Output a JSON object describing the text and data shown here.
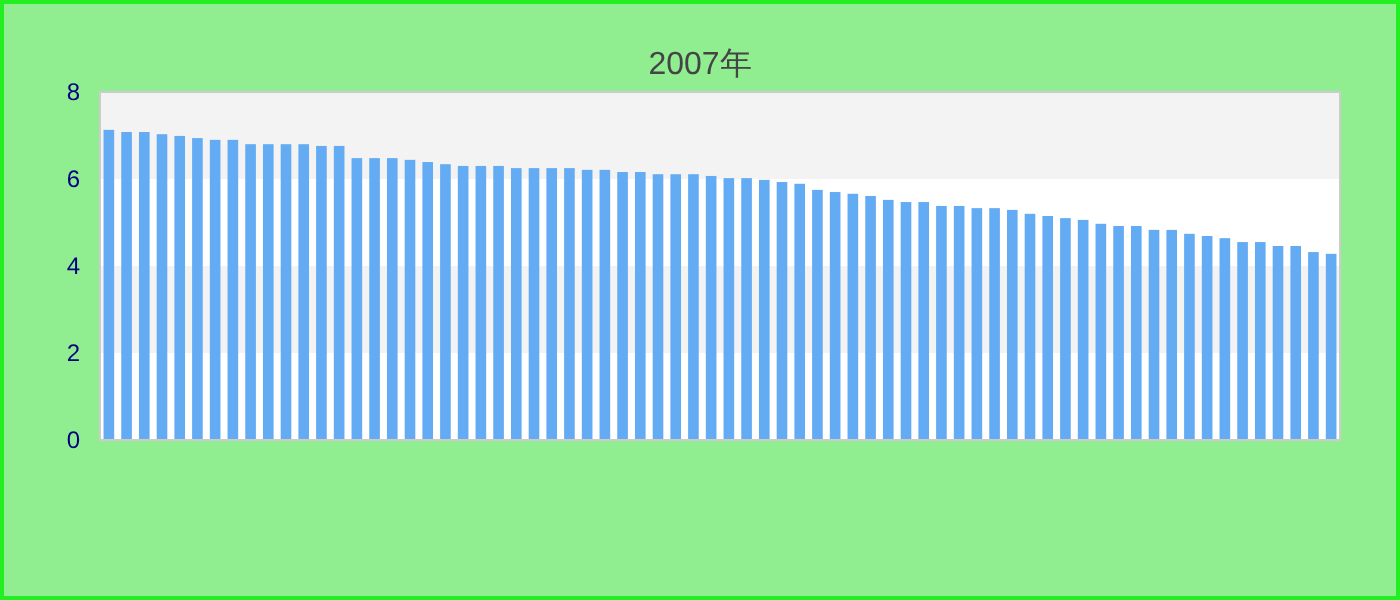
{
  "chart_data": {
    "type": "bar",
    "title": "2007年",
    "categories": [
      null,
      null,
      null,
      null,
      null,
      null,
      null,
      null,
      null,
      null,
      null,
      null,
      null,
      null,
      null,
      null,
      null,
      null,
      null,
      null,
      null,
      null,
      null,
      null,
      null,
      null,
      null,
      null,
      null,
      null,
      null,
      null,
      null,
      null,
      null,
      null,
      null,
      null,
      null,
      null,
      null,
      null,
      null,
      null,
      null,
      null,
      null,
      null,
      null,
      null,
      null,
      null,
      null,
      null,
      null,
      null,
      null,
      null,
      null,
      null,
      null,
      null,
      null,
      null,
      null,
      null,
      null,
      null,
      null,
      null
    ],
    "values": [
      7.13,
      7.08,
      7.08,
      7.03,
      6.99,
      6.94,
      6.9,
      6.9,
      6.8,
      6.8,
      6.8,
      6.8,
      6.76,
      6.76,
      6.48,
      6.48,
      6.48,
      6.44,
      6.39,
      6.34,
      6.3,
      6.3,
      6.3,
      6.25,
      6.25,
      6.25,
      6.25,
      6.21,
      6.21,
      6.16,
      6.16,
      6.11,
      6.11,
      6.11,
      6.07,
      6.02,
      6.02,
      5.98,
      5.93,
      5.89,
      5.75,
      5.7,
      5.66,
      5.61,
      5.52,
      5.47,
      5.47,
      5.38,
      5.38,
      5.33,
      5.33,
      5.29,
      5.2,
      5.15,
      5.1,
      5.06,
      4.97,
      4.92,
      4.92,
      4.83,
      4.83,
      4.74,
      4.69,
      4.64,
      4.55,
      4.55,
      4.46,
      4.46,
      4.32,
      4.28
    ],
    "color": "#63abf2",
    "ylim": [
      0,
      8
    ],
    "yticks": [
      0,
      2,
      4,
      6,
      8
    ],
    "bands": [
      {
        "axis": "y",
        "from": 2,
        "to": 4,
        "color": "#f3f3f3"
      },
      {
        "axis": "y",
        "from": 6,
        "to": 8,
        "color": "#f3f3f3"
      }
    ]
  }
}
